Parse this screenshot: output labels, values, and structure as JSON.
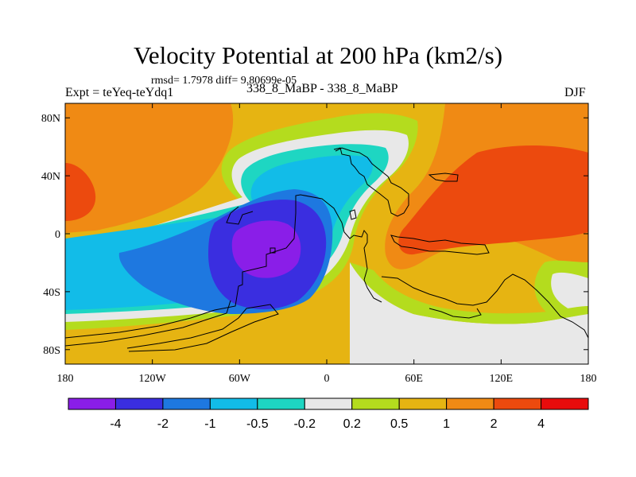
{
  "chart_data": {
    "type": "heatmap",
    "title": "Velocity Potential at 200 hPa (km2/s)",
    "stats_text": "rmsd= 1.7978 diff= 9.80699e-05",
    "left_label": "Expt = teYeq-teYdq1",
    "center_label": "338_8_MaBP - 338_8_MaBP",
    "right_label": "DJF",
    "x_ticks": [
      "180",
      "120W",
      "60W",
      "0",
      "60E",
      "120E",
      "180"
    ],
    "x_tick_values": [
      -180,
      -120,
      -60,
      0,
      60,
      120,
      180
    ],
    "y_ticks": [
      "80N",
      "40N",
      "0",
      "40S",
      "80S"
    ],
    "y_tick_values": [
      80,
      40,
      0,
      -40,
      -80
    ],
    "xlim": [
      -180,
      180
    ],
    "ylim": [
      -90,
      90
    ],
    "levels": [
      "-4",
      "-2",
      "-1",
      "-0.5",
      "-0.2",
      "0.2",
      "0.5",
      "1",
      "2",
      "4"
    ],
    "colors": [
      "#8a1ee8",
      "#3a2ee0",
      "#1e78e0",
      "#12bce8",
      "#1ed6c2",
      "#e8e8e8",
      "#b4dc1e",
      "#e6b412",
      "#f08a14",
      "#ec4a0e",
      "#e80c0c"
    ],
    "bands": [
      {
        "range": "<-4",
        "color": "#8a1ee8"
      },
      {
        "range": "-4 to -2",
        "color": "#3a2ee0"
      },
      {
        "range": "-2 to -1",
        "color": "#1e78e0"
      },
      {
        "range": "-1 to -0.5",
        "color": "#12bce8"
      },
      {
        "range": "-0.5 to -0.2",
        "color": "#1ed6c2"
      },
      {
        "range": "-0.2 to 0.2",
        "color": "#e8e8e8"
      },
      {
        "range": "0.2 to 0.5",
        "color": "#b4dc1e"
      },
      {
        "range": "0.5 to 1",
        "color": "#e6b412"
      },
      {
        "range": "1 to 2",
        "color": "#f08a14"
      },
      {
        "range": "2 to 4",
        "color": "#ec4a0e"
      },
      {
        "range": ">4",
        "color": "#e80c0c"
      }
    ],
    "features": [
      {
        "name": "negative center",
        "lon": -40,
        "lat": -10,
        "value": -4.5
      },
      {
        "name": "positive center east",
        "lon": 110,
        "lat": 0,
        "value": 3.5
      },
      {
        "name": "positive center west",
        "lon": -170,
        "lat": 20,
        "value": 3
      }
    ]
  }
}
